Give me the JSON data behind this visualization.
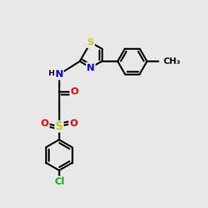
{
  "background_color": "#e8e8e8",
  "atom_colors": {
    "C": "#000000",
    "N": "#0000ff",
    "O": "#ff0000",
    "S": "#cccc00",
    "Cl": "#00bb00",
    "H": "#000000"
  },
  "bond_color": "#000000",
  "bond_width": 1.8,
  "font_size": 10,
  "fig_size": [
    3.0,
    3.0
  ],
  "dpi": 100,
  "xlim": [
    0,
    10
  ],
  "ylim": [
    0,
    10
  ]
}
